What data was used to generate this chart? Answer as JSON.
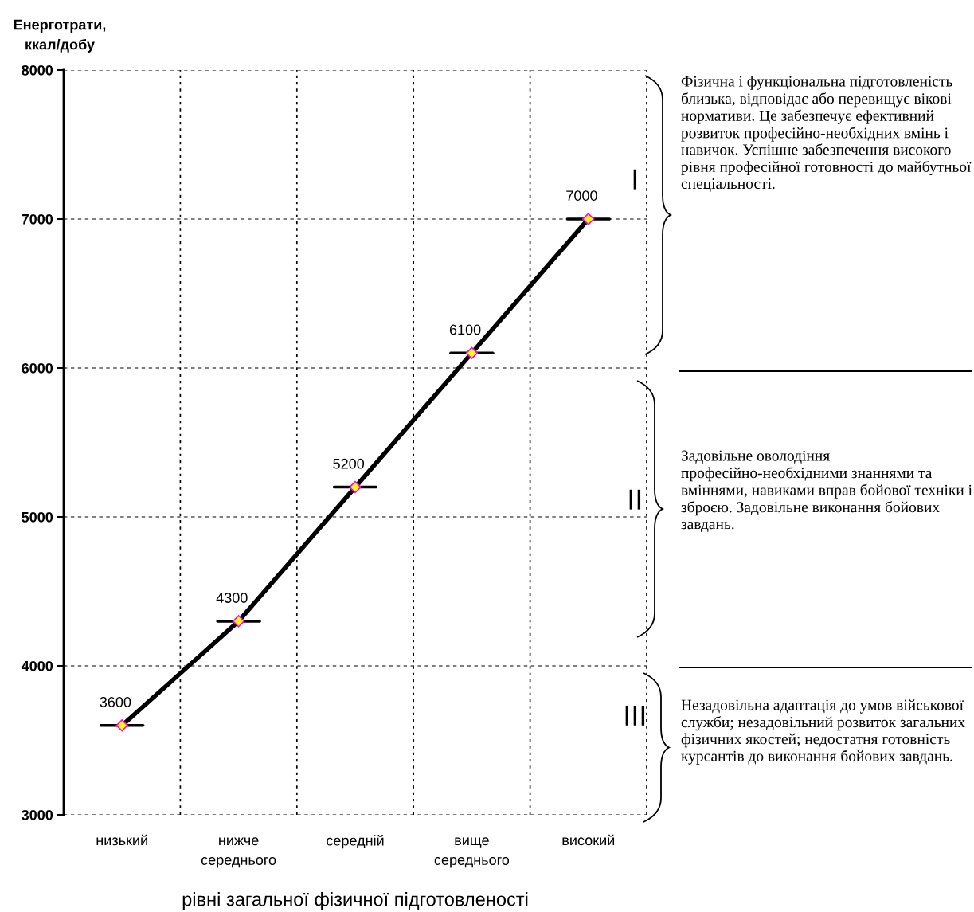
{
  "chart_data": {
    "type": "line",
    "categories": [
      "низький",
      "нижче\nсереднього",
      "середній",
      "вище\nсереднього",
      "високий"
    ],
    "series": [
      {
        "color": "#000000",
        "values": [
          3600,
          4300,
          5200,
          6100,
          7000
        ]
      }
    ],
    "ylim": [
      3000,
      8000
    ],
    "yticks": [
      3000,
      4000,
      5000,
      6000,
      7000,
      8000
    ],
    "ylabel": "Енерготрати,\nккал/добу",
    "xlabel": "рівні загальної фізичної підготовленості",
    "data_labels": true,
    "grid": true,
    "marker": "diamond",
    "line_style": "solid",
    "legend": false,
    "annotations": [
      "I",
      "II",
      "III",
      "Фізична і функціональна підготовленість близька, відповідає або перевищує вікові нормативи. Це забезпечує ефективний розвиток професійно-необхідних вмінь і навичок. Успішне забезпечення високого рівня професійної готовності до майбутньої спеціальності.",
      "Задовільне оволодіння професійно-необхідними знаннями та вміннями, навиками вправ бойової техніки і зброєю. Задовільне виконання бойових завдань.",
      "Незадовільна адаптація до умов військової служби; незадовільний розвиток загальних фізичних якостей; недостатня готовність курсантів до виконання бойових завдань."
    ]
  }
}
